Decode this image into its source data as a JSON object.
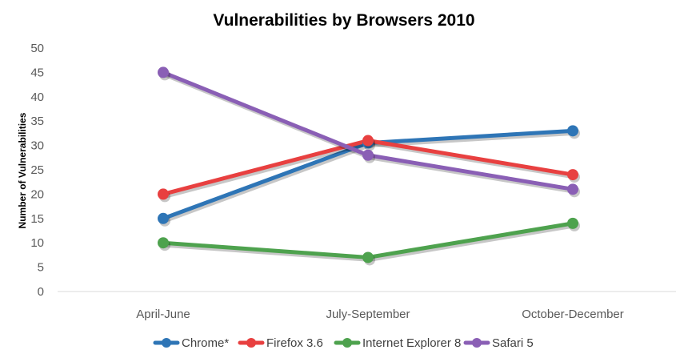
{
  "chart_data": {
    "type": "line",
    "title": "Vulnerabilities by Browsers 2010",
    "xlabel": "",
    "ylabel": "Number of Vulnerabilities",
    "categories": [
      "April-June",
      "July-September",
      "October-December"
    ],
    "ylim": [
      0,
      50
    ],
    "yticks": [
      0,
      5,
      10,
      15,
      20,
      25,
      30,
      35,
      40,
      45,
      50
    ],
    "grid": false,
    "legend_position": "bottom",
    "series": [
      {
        "name": "Chrome*",
        "color": "#2e75b6",
        "values": [
          15,
          30.5,
          33
        ]
      },
      {
        "name": "Firefox 3.6",
        "color": "#e84040",
        "values": [
          20,
          31,
          24
        ]
      },
      {
        "name": "Internet Explorer 8",
        "color": "#4ea24e",
        "values": [
          10,
          7,
          14
        ]
      },
      {
        "name": "Safari 5",
        "color": "#8a5fb5",
        "values": [
          45,
          28,
          21
        ]
      }
    ]
  }
}
